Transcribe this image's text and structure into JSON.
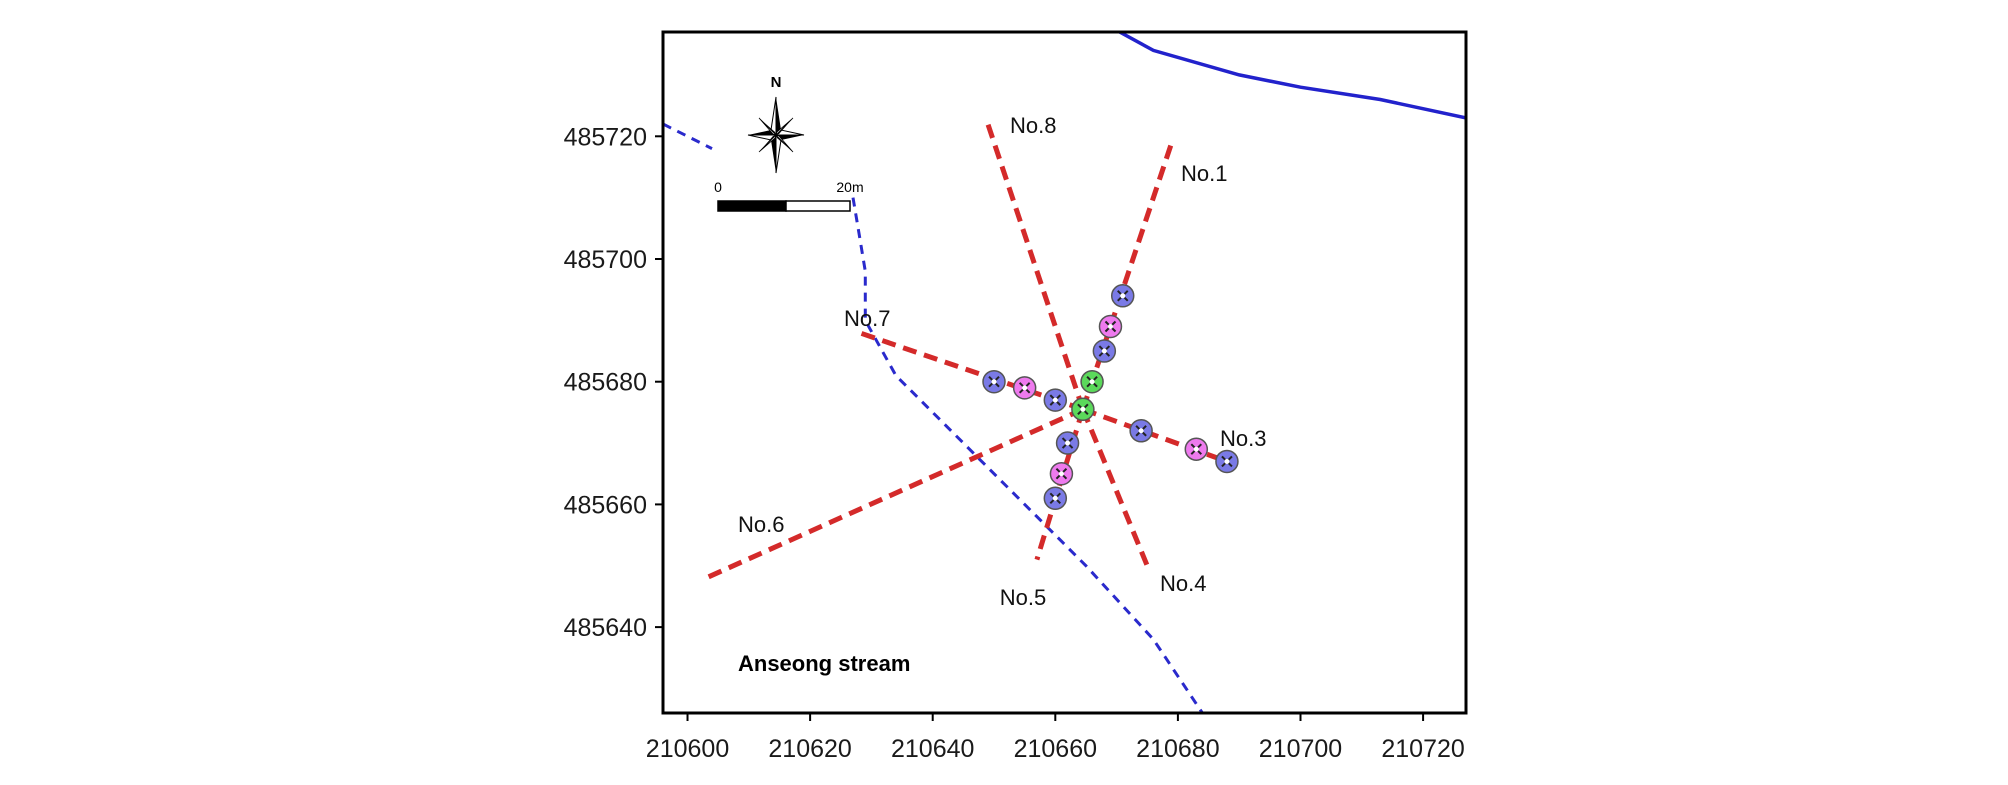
{
  "map": {
    "x_axis": {
      "ticks": [
        210600,
        210620,
        210640,
        210660,
        210680,
        210700,
        210720
      ],
      "range": [
        210596,
        210727
      ]
    },
    "y_axis": {
      "ticks": [
        485720,
        485700,
        485680,
        485660,
        485640
      ],
      "range": [
        485626,
        485737
      ]
    },
    "north_label": "N",
    "scale_bar": {
      "start_label": "0",
      "end_label": "20m"
    },
    "stream_label": "Anseong stream",
    "colors": {
      "survey_line": "#d42a2a",
      "stream_bank": "#2222cc",
      "boundary_dashed": "#2a2acc",
      "well_blue": "#7a7ae6",
      "well_magenta": "#ee7aee",
      "well_green": "#5bd95b"
    },
    "survey_lines": [
      {
        "label": "No.1",
        "from": [
          210664.5,
          485675.5
        ],
        "to": [
          210679,
          485719
        ]
      },
      {
        "label": "No.3",
        "from": [
          210664.5,
          485675.5
        ],
        "to": [
          210688,
          485667
        ]
      },
      {
        "label": "No.4",
        "from": [
          210664.5,
          485675.5
        ],
        "to": [
          210675,
          485650
        ]
      },
      {
        "label": "No.5",
        "from": [
          210664.5,
          485675.5
        ],
        "to": [
          210657,
          485651
        ]
      },
      {
        "label": "No.6",
        "from": [
          210664.5,
          485675.5
        ],
        "to": [
          210603,
          485648
        ]
      },
      {
        "label": "No.7",
        "from": [
          210664.5,
          485675.5
        ],
        "to": [
          210628,
          485688
        ]
      },
      {
        "label": "No.8",
        "from": [
          210664.5,
          485675.5
        ],
        "to": [
          210649,
          485722
        ]
      }
    ],
    "wells": [
      {
        "x": 210671,
        "y": 485694,
        "type": "blue"
      },
      {
        "x": 210669,
        "y": 485689,
        "type": "magenta"
      },
      {
        "x": 210668,
        "y": 485685,
        "type": "blue"
      },
      {
        "x": 210666,
        "y": 485680,
        "type": "green"
      },
      {
        "x": 210664.5,
        "y": 485675.5,
        "type": "green"
      },
      {
        "x": 210674,
        "y": 485672,
        "type": "blue"
      },
      {
        "x": 210683,
        "y": 485669,
        "type": "magenta"
      },
      {
        "x": 210688,
        "y": 485667,
        "type": "blue"
      },
      {
        "x": 210662,
        "y": 485670,
        "type": "blue"
      },
      {
        "x": 210661,
        "y": 485665,
        "type": "magenta"
      },
      {
        "x": 210660,
        "y": 485661,
        "type": "blue"
      },
      {
        "x": 210660,
        "y": 485677,
        "type": "blue"
      },
      {
        "x": 210655,
        "y": 485679,
        "type": "magenta"
      },
      {
        "x": 210650,
        "y": 485680,
        "type": "blue"
      }
    ],
    "stream_bank": [
      [
        210665,
        485740
      ],
      [
        210676,
        485734
      ],
      [
        210690,
        485730
      ],
      [
        210700,
        485728
      ],
      [
        210713,
        485726
      ],
      [
        210727,
        485723
      ]
    ],
    "boundary_upper": [
      [
        210596,
        485722
      ],
      [
        210604,
        485718
      ]
    ],
    "boundary_lower": [
      [
        210627,
        485710
      ],
      [
        210628,
        485704
      ],
      [
        210629,
        485698
      ],
      [
        210629,
        485690
      ],
      [
        210634,
        485681
      ],
      [
        210652,
        485663
      ],
      [
        210665,
        485650
      ],
      [
        210676,
        485638
      ],
      [
        210684,
        485626
      ]
    ]
  }
}
